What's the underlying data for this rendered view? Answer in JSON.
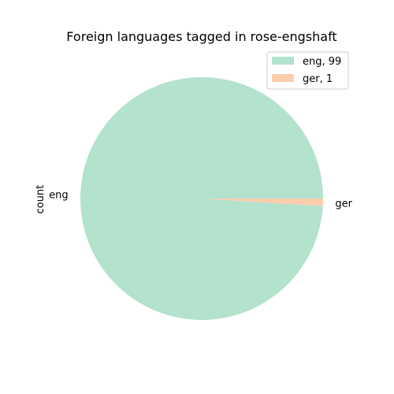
{
  "chart_data": {
    "type": "pie",
    "title": "Foreign languages tagged in rose-engshaft",
    "ylabel": "count",
    "categories": [
      "eng",
      "ger"
    ],
    "values": [
      99,
      1
    ],
    "colors": [
      "#b3e2cd",
      "#fdcdac"
    ],
    "legend": {
      "placement": "top-right",
      "entries": [
        "eng, 99",
        "ger, 1"
      ]
    }
  }
}
